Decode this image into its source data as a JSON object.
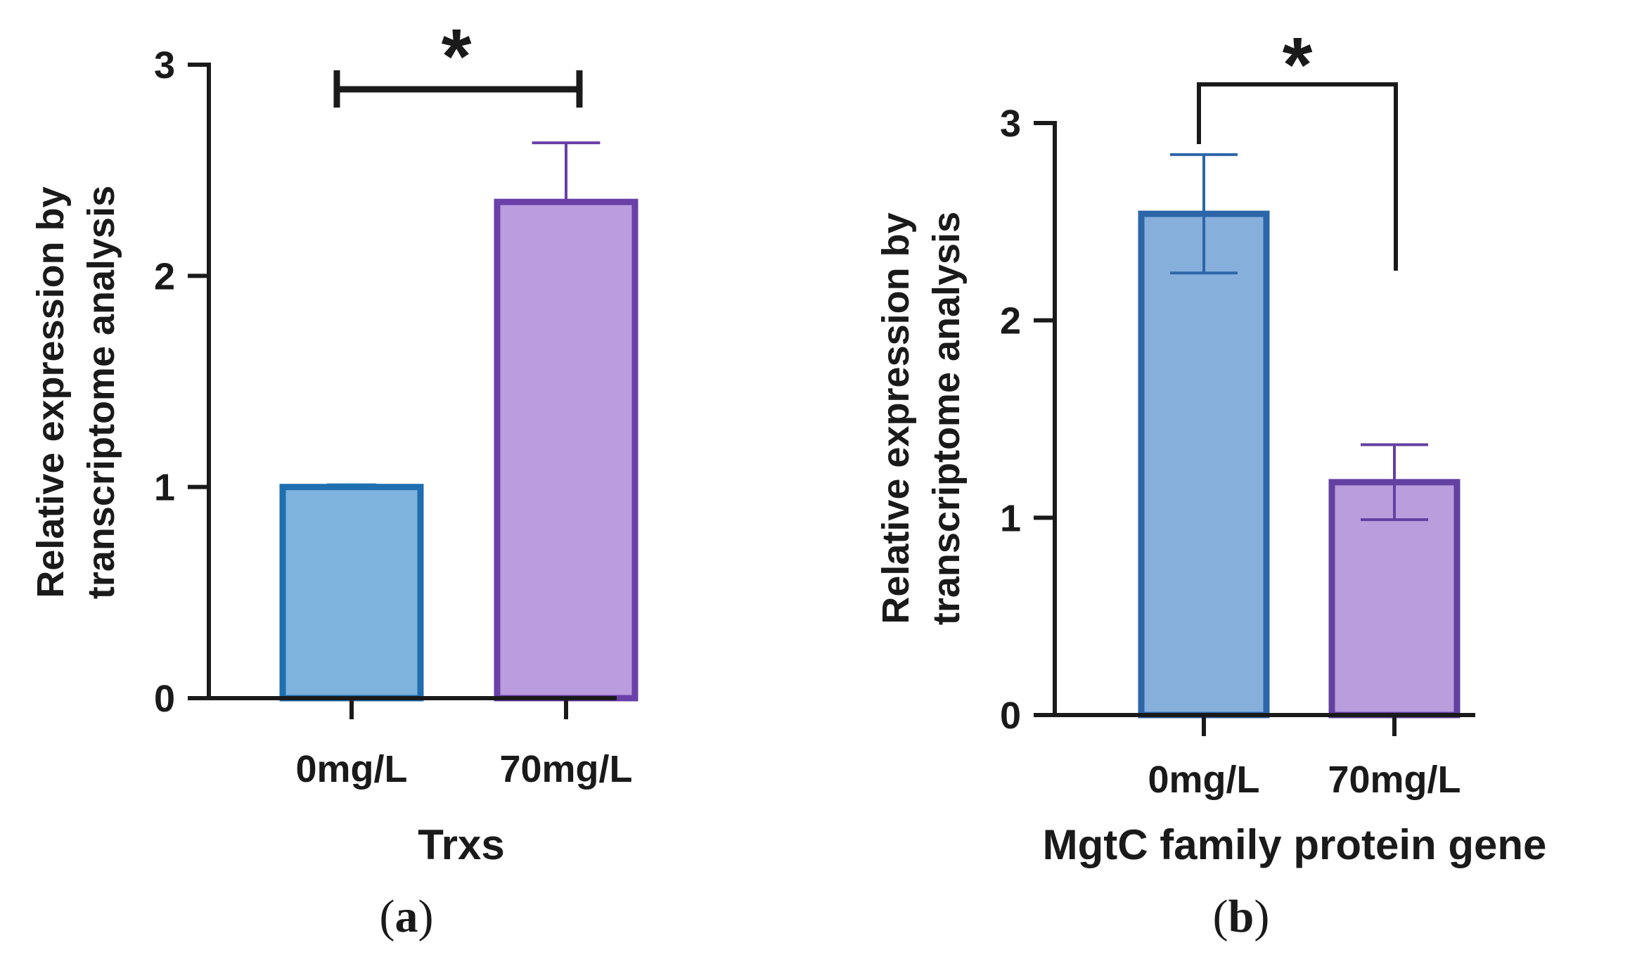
{
  "chart_data": [
    {
      "type": "bar",
      "panel_label": "a",
      "title": "",
      "xlabel": "Trxs",
      "ylabel_lines": [
        "Relative expression by",
        "transcriptome analysis"
      ],
      "categories": [
        "0mg/L",
        "70mg/L"
      ],
      "values": [
        1.0,
        2.35
      ],
      "errors": [
        0.01,
        0.28
      ],
      "ylim": [
        0,
        3
      ],
      "yticks": [
        "0",
        "1",
        "2",
        "3"
      ],
      "significance": {
        "label": "*",
        "between": [
          0,
          1
        ],
        "style": "bar"
      },
      "colors": {
        "fill": [
          "#7eb3dd",
          "#bb9ddf"
        ],
        "stroke": [
          "#1f6fb0",
          "#6a3fa8"
        ]
      }
    },
    {
      "type": "bar",
      "panel_label": "b",
      "title": "",
      "xlabel": "MgtC family protein gene",
      "ylabel_lines": [
        "Relative expression by",
        "transcriptome analysis"
      ],
      "categories": [
        "0mg/L",
        "70mg/L"
      ],
      "values": [
        2.54,
        1.18
      ],
      "errors": [
        0.3,
        0.19
      ],
      "ylim": [
        0,
        3
      ],
      "yticks": [
        "0",
        "1",
        "2",
        "3"
      ],
      "significance": {
        "label": "*",
        "between": [
          0,
          1
        ],
        "style": "bracket"
      },
      "colors": {
        "fill": [
          "#86afdc",
          "#b99ddc"
        ],
        "stroke": [
          "#2d66a8",
          "#6440a2"
        ]
      }
    }
  ]
}
